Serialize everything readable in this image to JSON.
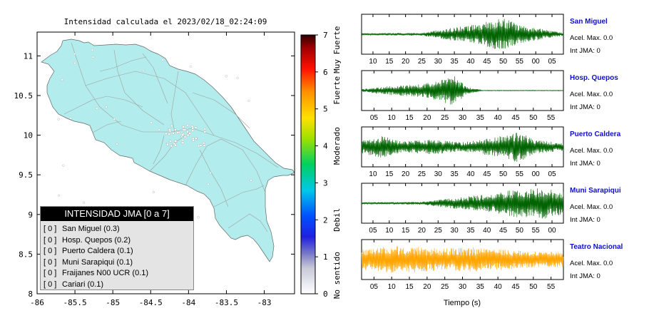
{
  "map": {
    "title": "Intensidad calculada el 2023/02/18_02:24:09",
    "land_color": "#b2ecec",
    "x_ticks": [
      "-86",
      "-85.5",
      "-85",
      "-84.5",
      "-84",
      "-83.5",
      "-83"
    ],
    "y_ticks": [
      "11",
      "10.5",
      "10",
      "9.5",
      "9",
      "8.5",
      "8"
    ],
    "xlim": [
      -86,
      -82.6
    ],
    "ylim": [
      8,
      11.3
    ]
  },
  "colorbar": {
    "ticks": [
      "0",
      "1",
      "2",
      "3",
      "4",
      "5",
      "6",
      "7"
    ],
    "category_labels": [
      "No sentido",
      "Debil",
      "Moderado",
      "Fuerte",
      "Muy Fuerte"
    ]
  },
  "legend": {
    "title": "INTENSIDAD JMA [0 a 7]",
    "items": [
      {
        "level": "[ 0 ]",
        "name": "San Miguel (0.3)"
      },
      {
        "level": "[ 0 ]",
        "name": "Hosp. Quepos (0.2)"
      },
      {
        "level": "[ 0 ]",
        "name": "Puerto Caldera (0.1)"
      },
      {
        "level": "[ 0 ]",
        "name": "Muni Sarapiqui (0.1)"
      },
      {
        "level": "[ 0 ]",
        "name": "Fraijanes N00 UCR (0.1)"
      },
      {
        "level": "[ 0 ]",
        "name": "Cariari (0.1)"
      }
    ]
  },
  "waveforms": {
    "xlabel": "Tiempo (s)",
    "panels": [
      {
        "station": "San Miguel",
        "acel": "Acel. Max. 0.0",
        "int": "Int JMA: 0",
        "color": "#006400",
        "ticks": [
          "10",
          "15",
          "20",
          "25",
          "30",
          "35",
          "40",
          "45",
          "50",
          "55",
          "00",
          "05"
        ]
      },
      {
        "station": "Hosp. Quepos",
        "acel": "Acel. Max. 0.0",
        "int": "Int JMA: 0",
        "color": "#006400",
        "ticks": [
          "05",
          "10",
          "15",
          "20",
          "25",
          "30",
          "35",
          "40",
          "45",
          "50",
          "55"
        ]
      },
      {
        "station": "Puerto Caldera",
        "acel": "Acel. Max. 0.0",
        "int": "Int JMA: 0",
        "color": "#006400",
        "ticks": [
          "10",
          "15",
          "20",
          "25",
          "30",
          "35",
          "40",
          "45",
          "50",
          "55",
          "00",
          "05"
        ]
      },
      {
        "station": "Muni Sarapiqui",
        "acel": "Acel. Max. 0.0",
        "int": "Int JMA: 0",
        "color": "#006400",
        "ticks": [
          "05",
          "10",
          "15",
          "20",
          "25",
          "30",
          "35",
          "40",
          "45",
          "50",
          "55",
          "00"
        ]
      },
      {
        "station": "Teatro Nacional",
        "acel": "Acel. Max. 0.0",
        "int": "Int JMA: 0",
        "color": "#ffa500",
        "ticks": [
          "05",
          "10",
          "15",
          "20",
          "25",
          "30",
          "35",
          "40",
          "45",
          "50",
          "55"
        ]
      }
    ]
  }
}
